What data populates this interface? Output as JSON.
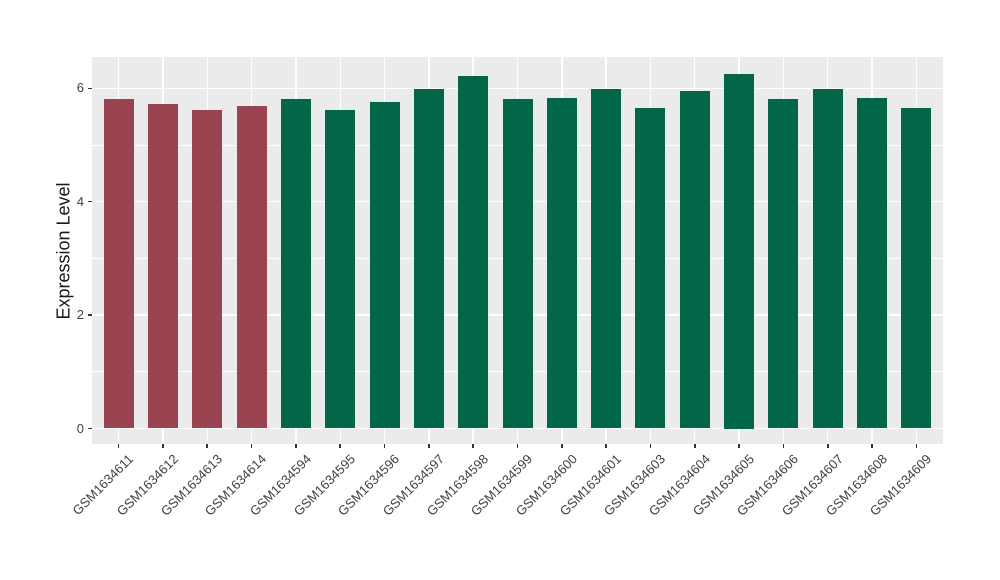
{
  "chart_data": {
    "type": "bar",
    "title": "",
    "xlabel": "",
    "ylabel": "Expression Level",
    "ylim": [
      0,
      6.55
    ],
    "yticks": [
      0,
      2,
      4,
      6
    ],
    "yticks_minor": [
      1,
      3,
      5
    ],
    "legend_position": "none",
    "grid": true,
    "categories": [
      "GSM1634611",
      "GSM1634612",
      "GSM1634613",
      "GSM1634614",
      "GSM1634594",
      "GSM1634595",
      "GSM1634596",
      "GSM1634597",
      "GSM1634598",
      "GSM1634599",
      "GSM1634600",
      "GSM1634601",
      "GSM1634603",
      "GSM1634604",
      "GSM1634605",
      "GSM1634606",
      "GSM1634607",
      "GSM1634608",
      "GSM1634609"
    ],
    "values": [
      5.81,
      5.72,
      5.61,
      5.68,
      5.82,
      5.61,
      5.75,
      5.98,
      6.22,
      5.82,
      5.83,
      5.98,
      5.65,
      5.95,
      6.25,
      5.82,
      5.98,
      5.83,
      5.65
    ],
    "groups": [
      "red",
      "red",
      "red",
      "red",
      "green",
      "green",
      "green",
      "green",
      "green",
      "green",
      "green",
      "green",
      "green",
      "green",
      "green",
      "green",
      "green",
      "green",
      "green"
    ],
    "palette": {
      "red": "#9A4452",
      "green": "#026748"
    },
    "panel_bg": "#EBEBEB",
    "grid_color": "#FFFFFF",
    "tick_color": "#333333",
    "text_color": "#404040",
    "title_color": "#1A1A1A"
  }
}
